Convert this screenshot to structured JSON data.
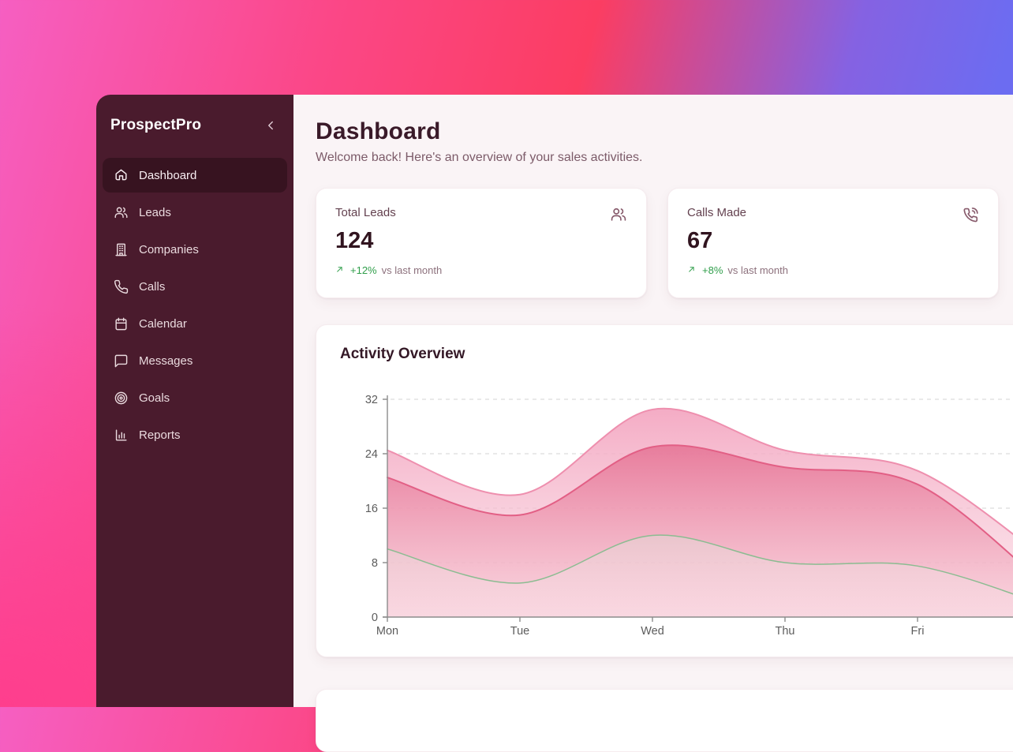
{
  "app": {
    "name": "ProspectPro",
    "collapse_icon": "chevron-left"
  },
  "sidebar": {
    "items": [
      {
        "label": "Dashboard",
        "icon": "home",
        "active": true
      },
      {
        "label": "Leads",
        "icon": "users",
        "active": false
      },
      {
        "label": "Companies",
        "icon": "building",
        "active": false
      },
      {
        "label": "Calls",
        "icon": "phone",
        "active": false
      },
      {
        "label": "Calendar",
        "icon": "calendar",
        "active": false
      },
      {
        "label": "Messages",
        "icon": "message",
        "active": false
      },
      {
        "label": "Goals",
        "icon": "target",
        "active": false
      },
      {
        "label": "Reports",
        "icon": "chart",
        "active": false
      }
    ]
  },
  "header": {
    "title": "Dashboard",
    "subtitle": "Welcome back! Here's an overview of your sales activities."
  },
  "stats": [
    {
      "label": "Total Leads",
      "value": "124",
      "icon": "users",
      "trend_icon": "trend-up",
      "delta": "+12%",
      "delta_suffix": "vs last month"
    },
    {
      "label": "Calls Made",
      "value": "67",
      "icon": "phone-call",
      "trend_icon": "trend-up",
      "delta": "+8%",
      "delta_suffix": "vs last month"
    }
  ],
  "chart_card": {
    "title": "Activity Overview"
  },
  "chart_data": {
    "type": "area",
    "title": "Activity Overview",
    "categories": [
      "Mon",
      "Tue",
      "Wed",
      "Thu",
      "Fri"
    ],
    "ylim": [
      0,
      32
    ],
    "yticks": [
      0,
      8,
      16,
      24,
      32
    ],
    "grid": "dashed-horizontal",
    "legend": "none",
    "note": "curves continue past Fri and are cropped at the right edge of the screen",
    "series": [
      {
        "name": "top-band",
        "stroke": "#ee8fae",
        "stroke_width": 2,
        "fill_top": "#f3a2be",
        "fill_bottom": "#f9d7e1",
        "fill_bottom_opacity": 0.55,
        "values": [
          24.5,
          18,
          30.5,
          24.5,
          21.5
        ],
        "offscreen_next_value": 8
      },
      {
        "name": "middle-band",
        "stroke": "#e25f85",
        "stroke_width": 2,
        "fill_top": "#e05b82",
        "fill_bottom": "#f6becd",
        "fill_bottom_opacity": 0.45,
        "values": [
          20.5,
          15,
          25,
          22,
          19.5
        ],
        "offscreen_next_value": 4
      },
      {
        "name": "bottom-band",
        "stroke": "#8bbc91",
        "stroke_width": 1.5,
        "fill_top": "#a2c6a3",
        "fill_bottom": "#ffffff",
        "fill_bottom_opacity": 0.05,
        "values": [
          10,
          5,
          12,
          8,
          7.5
        ],
        "offscreen_next_value": 1.5
      }
    ],
    "axis_color": "#8c8c8c",
    "grid_color": "#dcdcdc",
    "tick_label_color": "#5c5c5c"
  },
  "colors": {
    "sidebar_bg": "#4a1b2d",
    "sidebar_active_bg": "#371320",
    "main_bg": "#faf4f6",
    "card_bg": "#ffffff",
    "heading": "#3a1a29",
    "positive_green": "#2f9e4a",
    "gradient_left": "#f65fc2",
    "gradient_mid": "#fb3d62",
    "gradient_right": "#6c6cf1",
    "gradient_bottom_left": "#ff3d8c"
  }
}
